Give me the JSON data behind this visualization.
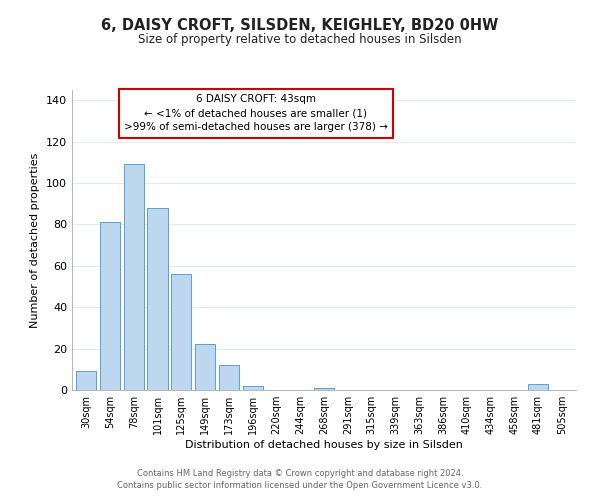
{
  "title": "6, DAISY CROFT, SILSDEN, KEIGHLEY, BD20 0HW",
  "subtitle": "Size of property relative to detached houses in Silsden",
  "xlabel": "Distribution of detached houses by size in Silsden",
  "ylabel": "Number of detached properties",
  "bar_labels": [
    "30sqm",
    "54sqm",
    "78sqm",
    "101sqm",
    "125sqm",
    "149sqm",
    "173sqm",
    "196sqm",
    "220sqm",
    "244sqm",
    "268sqm",
    "291sqm",
    "315sqm",
    "339sqm",
    "363sqm",
    "386sqm",
    "410sqm",
    "434sqm",
    "458sqm",
    "481sqm",
    "505sqm"
  ],
  "bar_values": [
    9,
    81,
    109,
    88,
    56,
    22,
    12,
    2,
    0,
    0,
    1,
    0,
    0,
    0,
    0,
    0,
    0,
    0,
    0,
    3,
    0
  ],
  "bar_color": "#bdd7ee",
  "bar_edge_color": "#5a9fd4",
  "ylim": [
    0,
    145
  ],
  "yticks": [
    0,
    20,
    40,
    60,
    80,
    100,
    120,
    140
  ],
  "annotation_box_text": "6 DAISY CROFT: 43sqm\n← <1% of detached houses are smaller (1)\n>99% of semi-detached houses are larger (378) →",
  "annotation_box_color": "#ffffff",
  "annotation_box_edge_color": "#cc0000",
  "footer_line1": "Contains HM Land Registry data © Crown copyright and database right 2024.",
  "footer_line2": "Contains public sector information licensed under the Open Government Licence v3.0.",
  "background_color": "#ffffff",
  "grid_color": "#ddeef7"
}
